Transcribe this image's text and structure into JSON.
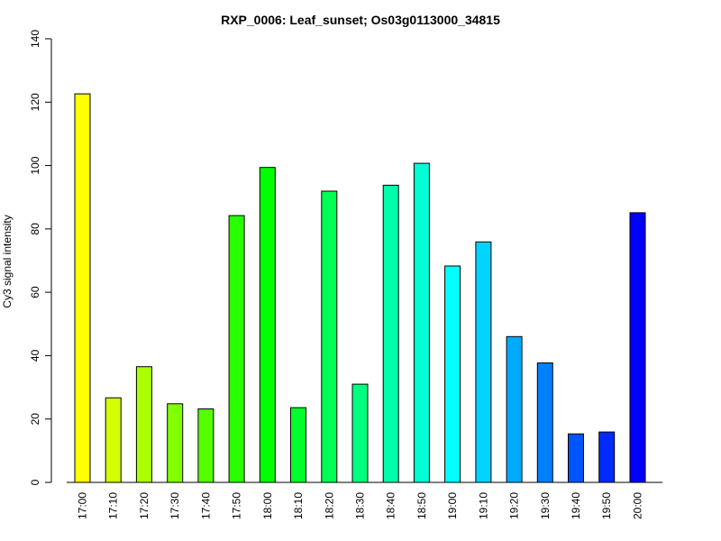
{
  "chart_data": {
    "type": "bar",
    "title": "RXP_0006: Leaf_sunset; Os03g0113000_34815",
    "xlabel": "",
    "ylabel": "Cy3 signal intensity",
    "ylim": [
      0,
      140
    ],
    "yticks": [
      0,
      20,
      40,
      60,
      80,
      100,
      120,
      140
    ],
    "grid": false,
    "categories": [
      "17:00",
      "17:10",
      "17:20",
      "17:30",
      "17:40",
      "17:50",
      "18:00",
      "18:10",
      "18:20",
      "18:30",
      "18:40",
      "18:50",
      "19:00",
      "19:10",
      "19:20",
      "19:30",
      "19:40",
      "19:50",
      "20:00"
    ],
    "values": [
      122.6,
      26.7,
      36.5,
      24.8,
      23.2,
      84.2,
      99.4,
      23.6,
      91.9,
      31.0,
      93.8,
      100.7,
      68.3,
      75.9,
      46.0,
      37.7,
      15.3,
      15.9,
      85.1
    ],
    "colors": [
      "#FFFF00",
      "#D4FF00",
      "#AAFF00",
      "#7FFF00",
      "#55FF00",
      "#2AFF00",
      "#00FF00",
      "#00FF2A",
      "#00FF55",
      "#00FF7F",
      "#00FFAA",
      "#00FFD4",
      "#00FFFF",
      "#00D4FF",
      "#00AAFF",
      "#007FFF",
      "#0055FF",
      "#002AFF",
      "#0000FF"
    ]
  }
}
